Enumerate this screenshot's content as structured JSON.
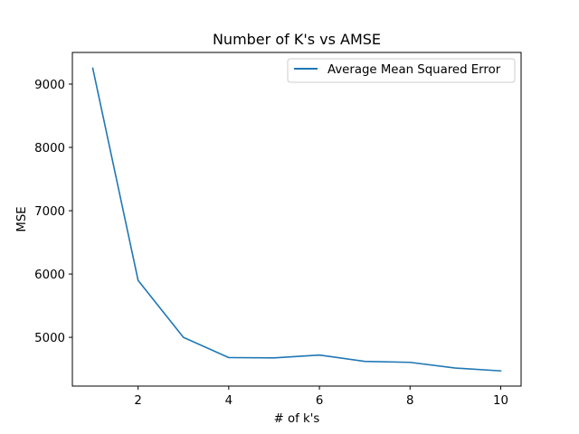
{
  "chart_data": {
    "type": "line",
    "title": "Number of K's vs AMSE",
    "xlabel": "# of k's",
    "ylabel": "MSE",
    "x": [
      1,
      2,
      3,
      4,
      5,
      6,
      7,
      8,
      9,
      10
    ],
    "series": [
      {
        "name": "Average Mean Squared Error",
        "color": "#1f77b4",
        "values": [
          9250,
          5900,
          5000,
          4680,
          4675,
          4720,
          4620,
          4605,
          4515,
          4470
        ]
      }
    ],
    "xlim": [
      0.55,
      10.45
    ],
    "ylim": [
      4230,
      9500
    ],
    "xticks": [
      2,
      4,
      6,
      8,
      10
    ],
    "xtick_labels": [
      "2",
      "4",
      "6",
      "8",
      "10"
    ],
    "yticks": [
      5000,
      6000,
      7000,
      8000,
      9000
    ],
    "ytick_labels": [
      "5000",
      "6000",
      "7000",
      "8000",
      "9000"
    ],
    "grid": false,
    "legend_position": "upper right"
  }
}
